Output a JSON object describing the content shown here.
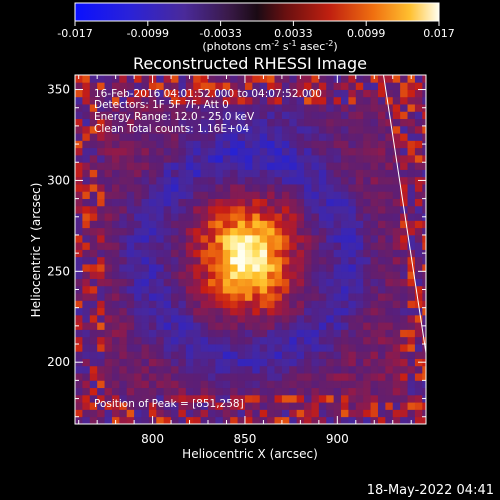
{
  "colorbar": {
    "ticks": [
      "-0.017",
      "-0.0099",
      "-0.0033",
      "0.0033",
      "0.0099",
      "0.017"
    ],
    "unit_main": "(photons cm",
    "unit_sup1": "-2",
    "unit_mid1": " s",
    "unit_sup2": "-1",
    "unit_mid2": " asec",
    "unit_sup3": "-2",
    "unit_end": ")"
  },
  "chart_data": {
    "type": "heatmap",
    "title": "Reconstructed RHESSI Image",
    "xlabel": "Heliocentric X (arcsec)",
    "ylabel": "Heliocentric Y (arcsec)",
    "xlim": [
      758,
      948
    ],
    "ylim": [
      166,
      358
    ],
    "x_ticks": [
      800,
      850,
      900
    ],
    "y_ticks": [
      200,
      250,
      300,
      350
    ],
    "value_range": [
      -0.017,
      0.017
    ],
    "peak": {
      "x": 851,
      "y": 258
    },
    "limb": [
      {
        "x": 925,
        "y": 358
      },
      {
        "x": 948,
        "y": 205
      }
    ],
    "colors": {
      "limb": "#ffffff",
      "background": "#000000"
    },
    "annotations": {
      "time": "16-Feb-2016 04:01:52.000 to 04:07:52.000",
      "detectors": "Detectors: 1F 5F 7F, Att 0",
      "energy": "Energy Range: 12.0 - 25.0 keV",
      "clean": "Clean     Total counts: 1.16E+04",
      "peak_text": "Position of Peak = [851,258]"
    }
  },
  "footer_date": "18-May-2022 04:41"
}
